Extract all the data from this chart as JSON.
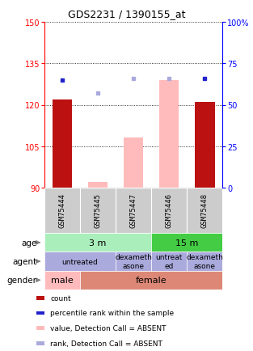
{
  "title": "GDS2231 / 1390155_at",
  "samples": [
    "GSM75444",
    "GSM75445",
    "GSM75447",
    "GSM75446",
    "GSM75448"
  ],
  "ylim_left": [
    90,
    150
  ],
  "ylim_right": [
    0,
    100
  ],
  "yticks_left": [
    90,
    105,
    120,
    135,
    150
  ],
  "yticks_right": [
    0,
    25,
    50,
    75,
    100
  ],
  "ytick_right_labels": [
    "0",
    "25",
    "50",
    "75",
    "100%"
  ],
  "bar_values_red": [
    122,
    0,
    0,
    0,
    121
  ],
  "bar_values_pink": [
    0,
    92,
    108,
    129,
    0
  ],
  "dot_blue_y": [
    65,
    0,
    0,
    0,
    66
  ],
  "dot_lavender_y": [
    0,
    57,
    66,
    66,
    0
  ],
  "bar_color_red": "#bb1111",
  "bar_color_pink": "#ffbbbb",
  "dot_color_blue": "#2222cc",
  "dot_color_lavender": "#aaaadd",
  "age_color_3m": "#aaeebb",
  "age_color_15m": "#44cc44",
  "agent_color": "#aaaadd",
  "gender_male_color": "#ffbbbb",
  "gender_female_color": "#dd8877",
  "sample_box_color": "#cccccc",
  "age_specs": [
    {
      "cols": [
        0,
        1,
        2
      ],
      "label": "3 m"
    },
    {
      "cols": [
        3,
        4
      ],
      "label": "15 m"
    }
  ],
  "agent_specs": [
    {
      "cols": [
        0,
        1
      ],
      "label": "untreated"
    },
    {
      "cols": [
        2
      ],
      "label": "dexameth\nasone"
    },
    {
      "cols": [
        3
      ],
      "label": "untreat\ned"
    },
    {
      "cols": [
        4
      ],
      "label": "dexameth\nasone"
    }
  ],
  "gender_specs": [
    {
      "cols": [
        0
      ],
      "label": "male"
    },
    {
      "cols": [
        1,
        2,
        3,
        4
      ],
      "label": "female"
    }
  ],
  "row_labels": [
    "age",
    "agent",
    "gender"
  ],
  "legend_items": [
    {
      "color": "#bb1111",
      "label": "count"
    },
    {
      "color": "#2222cc",
      "label": "percentile rank within the sample"
    },
    {
      "color": "#ffbbbb",
      "label": "value, Detection Call = ABSENT"
    },
    {
      "color": "#aaaadd",
      "label": "rank, Detection Call = ABSENT"
    }
  ]
}
